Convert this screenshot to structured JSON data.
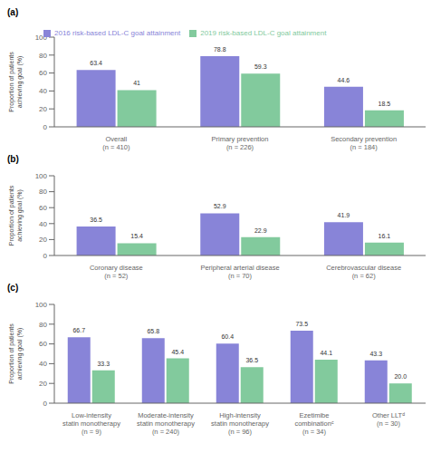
{
  "chart_data": [
    {
      "type": "bar",
      "title": "(a)",
      "categories": [
        "Overall\n(n = 410)",
        "Primary prevention\n(n = 226)",
        "Secondary prevention\n(n = 184)"
      ],
      "series": [
        {
          "name": "2016 risk-based LDL-C goal attainment",
          "color": "#8884d8",
          "values": [
            63.4,
            78.8,
            44.6
          ]
        },
        {
          "name": "2019 risk-based LDL-C goal attainment",
          "color": "#82ca9d",
          "values": [
            41.0,
            59.3,
            18.5
          ]
        }
      ],
      "ylabel": "Proportion of patients\nachieving goal (%)",
      "ylim": [
        0,
        100
      ],
      "yticks": [
        0,
        20,
        40,
        60,
        80,
        100
      ],
      "data_labels": true,
      "legend": "top"
    },
    {
      "type": "bar",
      "title": "(b)",
      "categories": [
        "Coronary disease\n(n = 52)",
        "Peripheral arterial disease\n(n = 70)",
        "Cerebrovascular disease\n(n = 62)"
      ],
      "series": [
        {
          "name": "2016 risk-based LDL-C goal attainment",
          "color": "#8884d8",
          "values": [
            36.5,
            52.9,
            41.9
          ]
        },
        {
          "name": "2019 risk-based LDL-C goal attainment",
          "color": "#82ca9d",
          "values": [
            15.4,
            22.9,
            16.1
          ]
        }
      ],
      "ylabel": "Proportion of patients\nachieving goal (%)",
      "ylim": [
        0,
        100
      ],
      "yticks": [
        0,
        20,
        40,
        60,
        80,
        100
      ],
      "data_labels": true
    },
    {
      "type": "bar",
      "title": "(c)",
      "categories": [
        "Low-intensity\nstatin monotherapy\n(n = 9)",
        "Moderate-intensity\nstatin monotherapy\n(n = 240)",
        "High-intensity\nstatin monotherapy\n(n = 96)",
        "Ezetimibe\ncombinationᶜ\n(n = 34)",
        "Other LLTᵈ\n(n = 30)"
      ],
      "series": [
        {
          "name": "2016 risk-based LDL-C goal attainment",
          "color": "#8884d8",
          "values": [
            66.7,
            65.8,
            60.4,
            73.5,
            43.3
          ]
        },
        {
          "name": "2019 risk-based LDL-C goal attainment",
          "color": "#82ca9d",
          "values": [
            33.3,
            45.4,
            36.5,
            44.1,
            20.0
          ],
          "value_labels": [
            "33.3",
            "45.4",
            "36.5",
            "44.1",
            "20.0"
          ]
        }
      ],
      "ylabel": "Proportion of patients\nachieving goal (%)",
      "ylim": [
        0,
        100
      ],
      "yticks": [
        0,
        20,
        40,
        60,
        80,
        100
      ],
      "data_labels": true
    }
  ]
}
